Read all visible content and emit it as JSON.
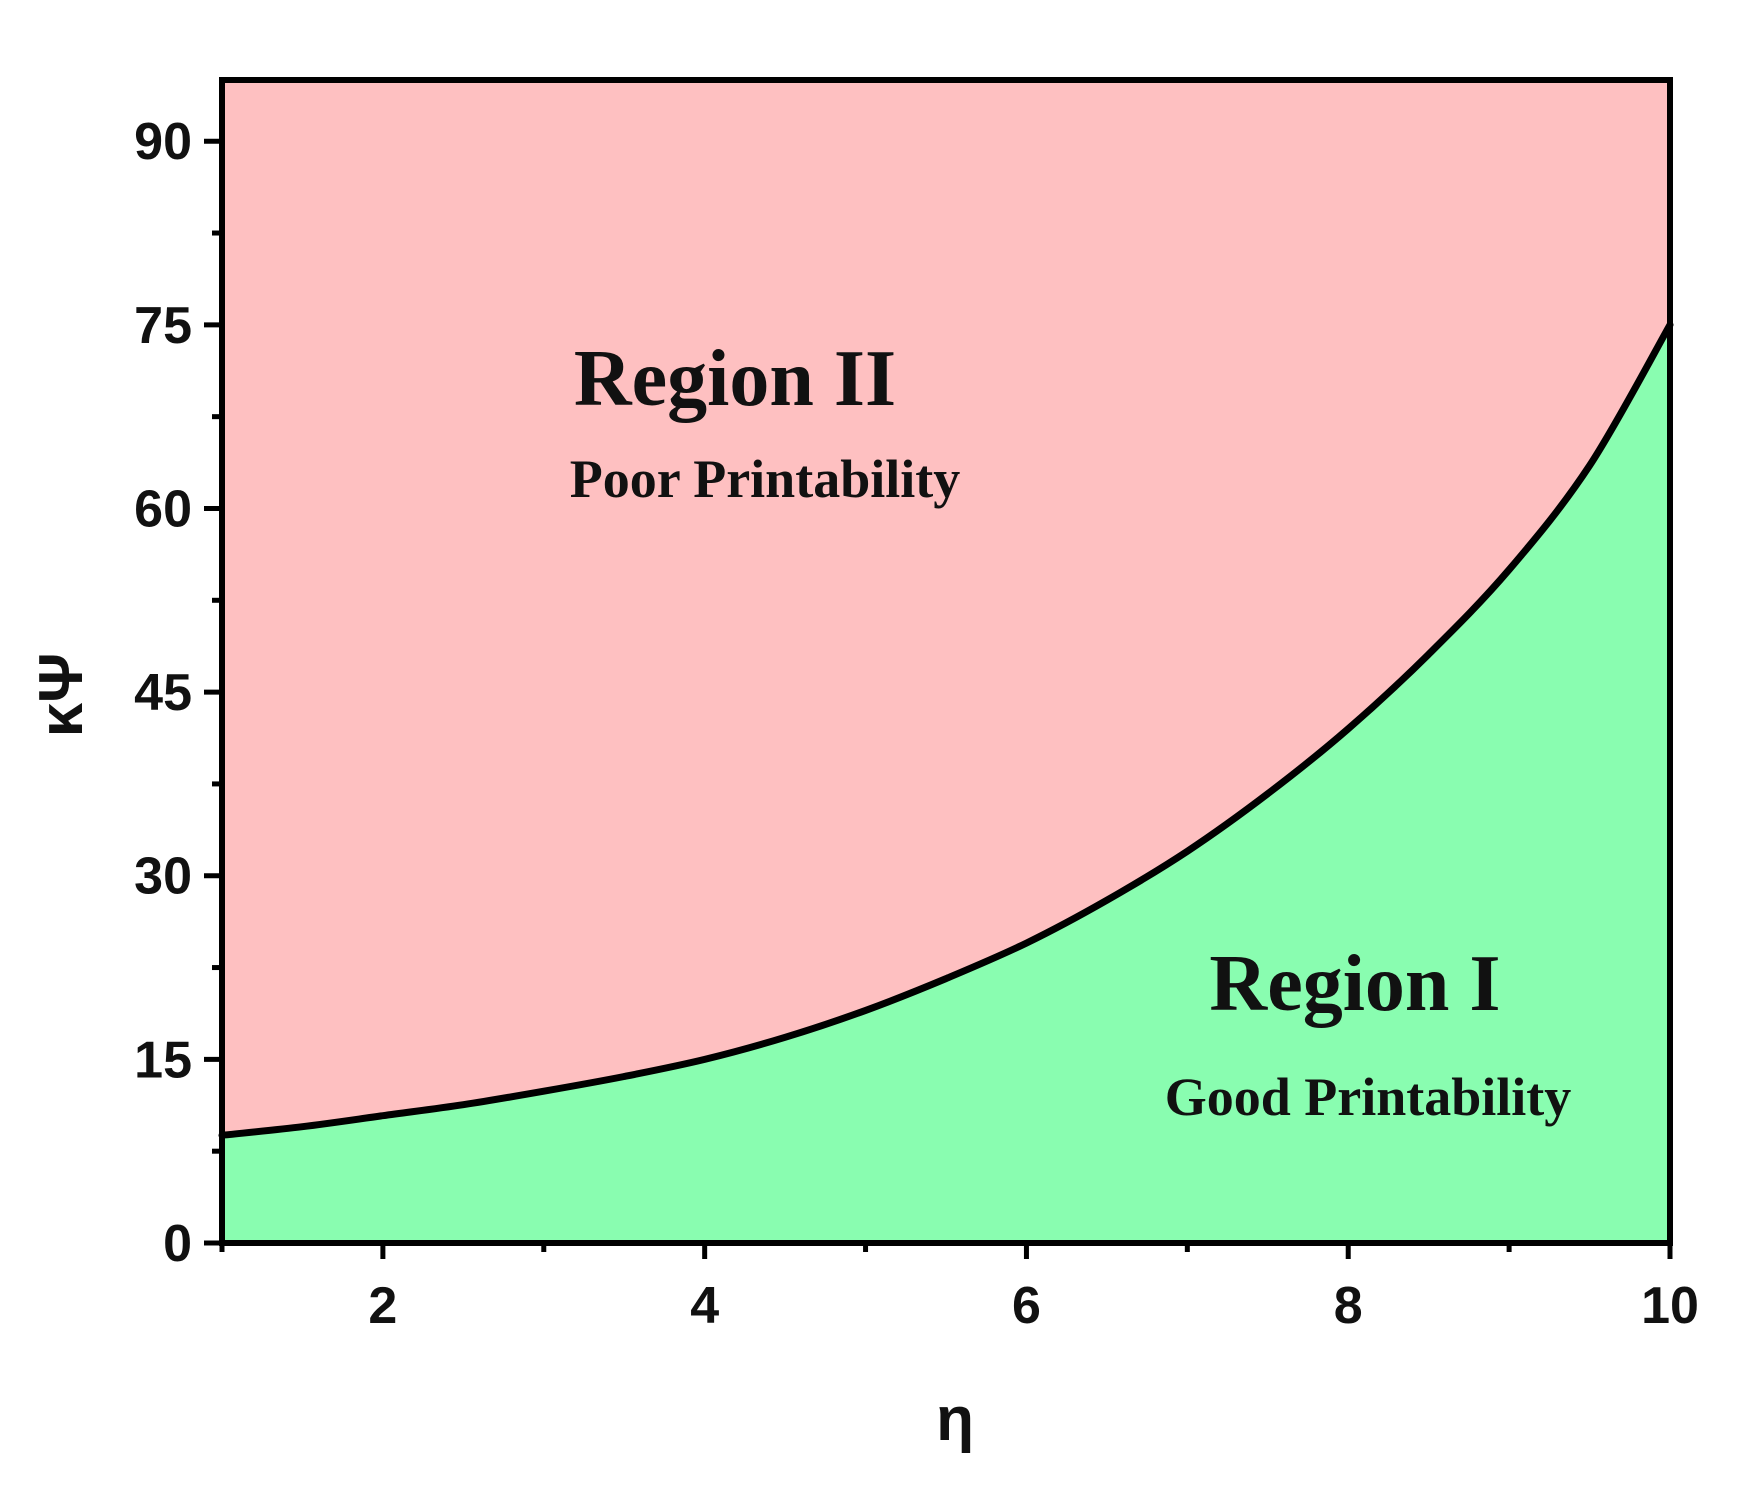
{
  "chart_data": {
    "type": "area",
    "title": "",
    "xlabel": "η",
    "ylabel": "κΨ",
    "xlim": [
      1,
      10
    ],
    "ylim": [
      0,
      95
    ],
    "x_ticks": [
      2,
      4,
      6,
      8,
      10
    ],
    "x_tick_labels": [
      "2",
      "4",
      "6",
      "8",
      "10"
    ],
    "x_minor_ticks": [
      1,
      3,
      5,
      7,
      9
    ],
    "y_ticks": [
      0,
      15,
      30,
      45,
      60,
      75,
      90
    ],
    "y_tick_labels": [
      "0",
      "15",
      "30",
      "45",
      "60",
      "75",
      "90"
    ],
    "y_minor_ticks": [
      7.5,
      22.5,
      37.5,
      52.5,
      67.5,
      82.5
    ],
    "grid": false,
    "boundary": {
      "x": [
        1,
        1.5,
        2,
        2.5,
        3,
        3.5,
        4,
        4.5,
        5,
        5.5,
        6,
        6.5,
        7,
        7.5,
        8,
        8.5,
        9,
        9.5,
        10
      ],
      "y": [
        8.8,
        9.5,
        10.4,
        11.3,
        12.4,
        13.6,
        15.0,
        16.8,
        19.0,
        21.6,
        24.5,
        28.0,
        32.0,
        36.7,
        42.0,
        48.1,
        55.0,
        63.5,
        75.0
      ]
    },
    "regions": [
      {
        "title": "Region II",
        "subtitle": "Poor Printability",
        "position": "above",
        "color": "#fec0c1"
      },
      {
        "title": "Region I",
        "subtitle": "Good Printability",
        "position": "below",
        "color": "#89fdb0"
      }
    ],
    "boundary_color": "#000000"
  }
}
